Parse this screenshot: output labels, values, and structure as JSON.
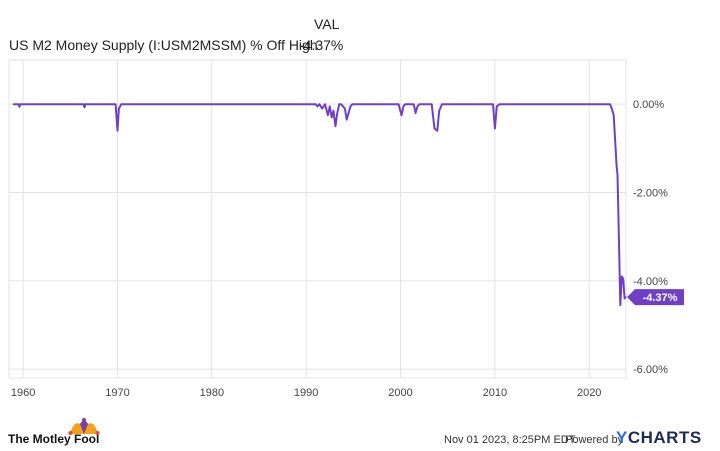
{
  "legend": {
    "column_header": "VAL",
    "series_name": "US M2 Money Supply (I:USM2MSSM) % Off High",
    "series_value": "-4.37%"
  },
  "colors": {
    "line": "#6f3fc8",
    "badge": "#6f3fc8",
    "grid": "#e3e3e3",
    "axis_text": "#444444"
  },
  "chart_data": {
    "type": "line",
    "title": "",
    "xlabel": "",
    "ylabel": "",
    "xlim": [
      1958.5,
      2023.9
    ],
    "ylim": [
      -6.2,
      1.0
    ],
    "x_ticks": [
      1960,
      1970,
      1980,
      1990,
      2000,
      2010,
      2020
    ],
    "x_tick_labels": [
      "1960",
      "1970",
      "1980",
      "1990",
      "2000",
      "2010",
      "2020"
    ],
    "y_ticks": [
      0,
      -2,
      -4,
      -6
    ],
    "y_tick_labels": [
      "0.00%",
      "-2.00%",
      "-4.00%",
      "-6.00%"
    ],
    "grid": true,
    "y_axis_side": "right",
    "series": [
      {
        "name": "US M2 Money Supply (I:USM2MSSM) % Off High",
        "x": [
          1959.0,
          1959.5,
          1959.6,
          1959.7,
          1966.4,
          1966.5,
          1966.6,
          1969.8,
          1970.0,
          1970.15,
          1970.4,
          1990.5,
          1991.0,
          1991.2,
          1991.4,
          1991.7,
          1992.0,
          1992.3,
          1992.5,
          1992.7,
          1992.9,
          1993.1,
          1993.3,
          1993.5,
          1993.7,
          1994.1,
          1994.3,
          1994.5,
          1994.7,
          1994.9,
          1995.3,
          1995.6,
          1999.8,
          2000.1,
          2000.3,
          2000.5,
          2001.4,
          2001.6,
          2001.8,
          2002.0,
          2003.3,
          2003.6,
          2003.9,
          2004.1,
          2004.4,
          2004.7,
          2004.9,
          2009.8,
          2010.0,
          2010.2,
          2010.5,
          2022.2,
          2022.4,
          2022.6,
          2022.9,
          2023.0,
          2023.1,
          2023.3,
          2023.45,
          2023.6,
          2023.75,
          2023.85
        ],
        "y": [
          0,
          0,
          -0.06,
          0,
          0,
          -0.07,
          0,
          0,
          -0.6,
          -0.1,
          0,
          0,
          0,
          -0.05,
          0,
          -0.1,
          0,
          -0.25,
          -0.05,
          -0.3,
          -0.15,
          -0.5,
          -0.2,
          0,
          0,
          -0.1,
          -0.35,
          -0.2,
          -0.05,
          0,
          0,
          0,
          0,
          -0.25,
          -0.05,
          0,
          0,
          -0.2,
          -0.05,
          0,
          0,
          -0.55,
          -0.6,
          -0.15,
          0,
          0,
          0,
          0,
          -0.55,
          -0.05,
          0,
          0,
          -0.1,
          -0.25,
          -1.4,
          -1.6,
          -2.6,
          -4.55,
          -3.9,
          -3.95,
          -4.4,
          -4.37
        ]
      }
    ],
    "last_value_label": "-4.37%"
  },
  "footer": {
    "brand": "The Motley Fool",
    "timestamp": "Nov 01 2023, 8:25PM EDT.",
    "powered_by": "Powered by",
    "provider_y": "Y",
    "provider_rest": "CHARTS"
  }
}
